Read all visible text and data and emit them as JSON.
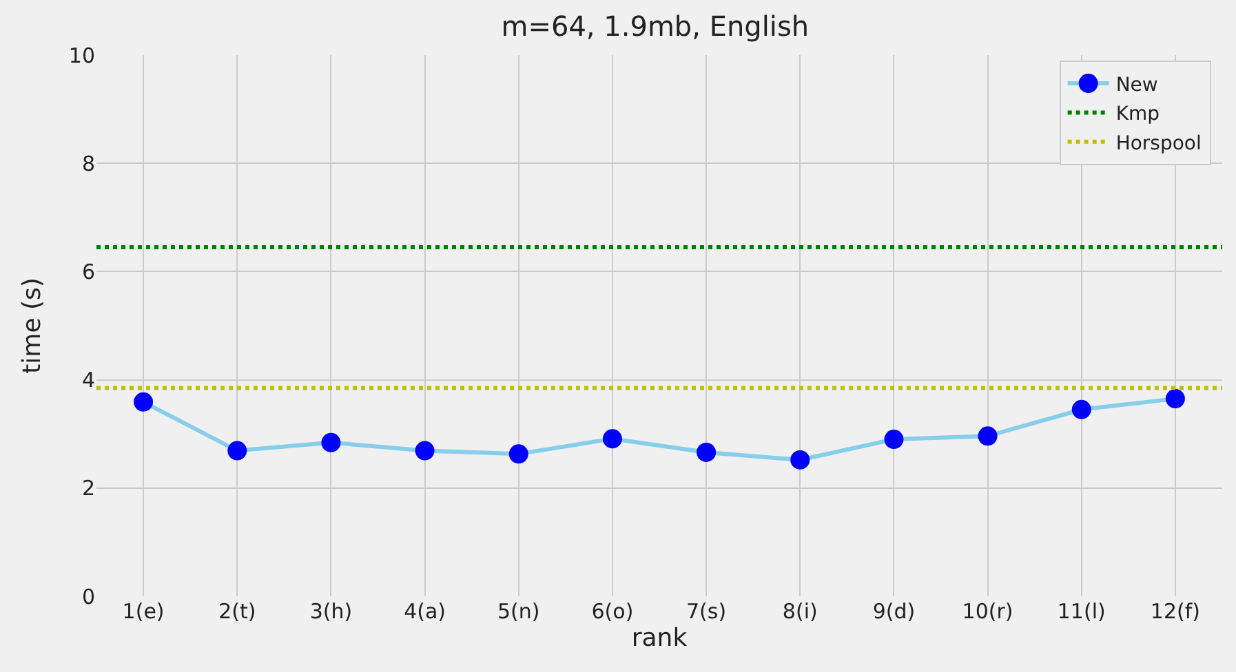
{
  "chart_data": {
    "type": "line",
    "title": "m=64, 1.9mb, English",
    "xlabel": "rank",
    "ylabel": "time (s)",
    "categories": [
      "1(e)",
      "2(t)",
      "3(h)",
      "4(a)",
      "5(n)",
      "6(o)",
      "7(s)",
      "8(i)",
      "9(d)",
      "10(r)",
      "11(l)",
      "12(f)"
    ],
    "series": [
      {
        "name": "New",
        "color": "#87ceeb",
        "colors": [
          "#0000ff",
          "#0000ff",
          "#0000ff",
          "#0000ff",
          "#0000ff",
          "#0000ff",
          "#0000ff",
          "#0000ff",
          "#0000ff",
          "#0000ff",
          "#0000ff",
          "#0000ff"
        ],
        "values": [
          3.59,
          2.69,
          2.84,
          2.69,
          2.63,
          2.91,
          2.66,
          2.52,
          2.9,
          2.96,
          3.45,
          3.65
        ]
      }
    ],
    "ref_lines": [
      {
        "axis": "y",
        "value": 6.45,
        "label": "Kmp",
        "color": "#008000",
        "line_style": "dotted"
      },
      {
        "axis": "y",
        "value": 3.85,
        "label": "Horspool",
        "color": "#bfbf00",
        "line_style": "dotted"
      }
    ],
    "ylim": [
      0,
      10
    ],
    "yticks": [
      0,
      2,
      4,
      6,
      8,
      10
    ],
    "grid": true,
    "legend": "top right",
    "marker": "circle",
    "line_style": "solid"
  }
}
